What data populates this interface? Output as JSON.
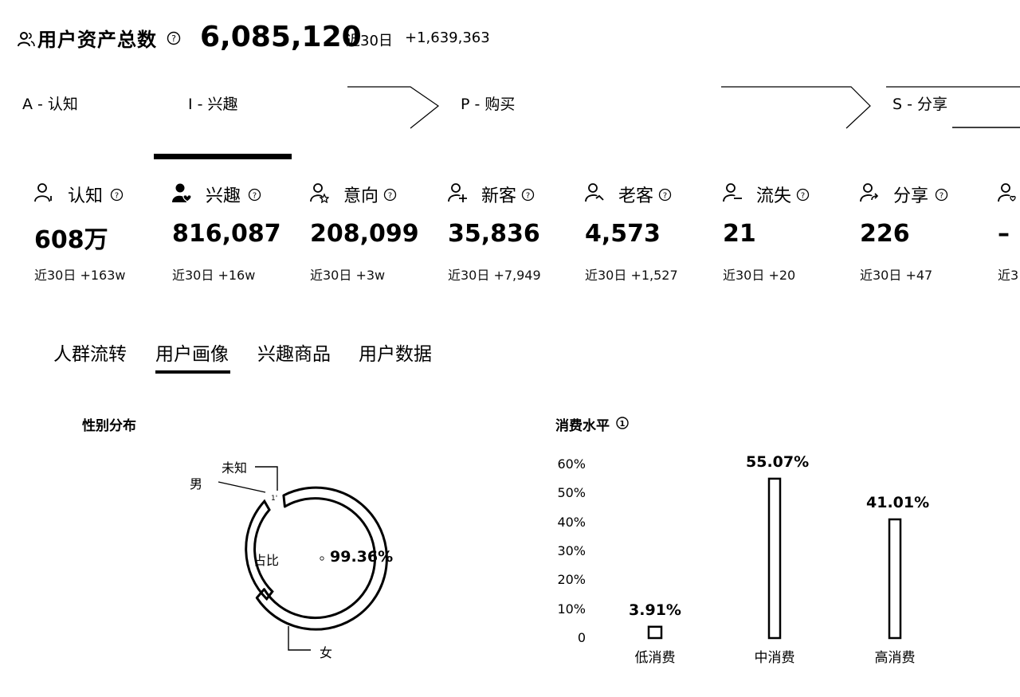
{
  "header": {
    "title": "用户资产总数",
    "total": "6,085,120",
    "period_label": "近30日",
    "delta": "+1,639,363"
  },
  "funnel": {
    "steps": [
      {
        "label": "A - 认知"
      },
      {
        "label": "I - 兴趣",
        "active": true
      },
      {
        "label": "P - 购买"
      },
      {
        "label": "S - 分享"
      }
    ]
  },
  "metrics": [
    {
      "label": "认知",
      "value": "608万",
      "delta": "近30日 +163w",
      "icon": "user-icon"
    },
    {
      "label": "兴趣",
      "value": "816,087",
      "delta": "近30日 +16w",
      "icon": "user-heart-icon"
    },
    {
      "label": "意向",
      "value": "208,099",
      "delta": "近30日 +3w",
      "icon": "user-star-icon"
    },
    {
      "label": "新客",
      "value": "35,836",
      "delta": "近30日 +7,949",
      "icon": "user-plus-icon"
    },
    {
      "label": "老客",
      "value": "4,573",
      "delta": "近30日 +1,527",
      "icon": "user-check-icon"
    },
    {
      "label": "流失",
      "value": "21",
      "delta": "近30日 +20",
      "icon": "user-minus-icon"
    },
    {
      "label": "分享",
      "value": "226",
      "delta": "近30日 +47",
      "icon": "user-share-icon"
    },
    {
      "label": "",
      "value": "–",
      "delta": "近3",
      "icon": "user-heart-outline-icon"
    }
  ],
  "tabs": [
    {
      "label": "人群流转"
    },
    {
      "label": "用户画像",
      "active": true
    },
    {
      "label": "兴趣商品"
    },
    {
      "label": "用户数据"
    }
  ],
  "gender": {
    "title": "性别分布",
    "center_label": "占比",
    "percent": "99.36%",
    "labels": {
      "male": "男",
      "unknown": "未知",
      "female": "女"
    },
    "chart_data": {
      "type": "pie",
      "categories": [
        "女",
        "男",
        "未知"
      ],
      "values": [
        99.36,
        0.5,
        0.14
      ]
    }
  },
  "consumption": {
    "title": "消费水平",
    "y_ticks": [
      "60%",
      "50%",
      "40%",
      "30%",
      "20%",
      "10%",
      "0"
    ],
    "chart_data": {
      "type": "bar",
      "title": "消费水平",
      "categories": [
        "低消费",
        "中消费",
        "高消费"
      ],
      "values": [
        3.91,
        55.07,
        41.01
      ],
      "value_labels": [
        "3.91%",
        "55.07%",
        "41.01%"
      ],
      "ylim": [
        0,
        60
      ],
      "grid": false
    }
  }
}
